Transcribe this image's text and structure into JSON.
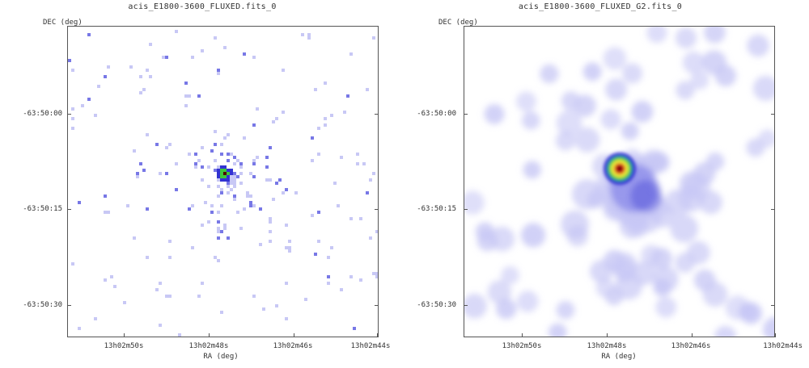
{
  "panels": [
    {
      "title": "acis_E1800-3600_FLUXED.fits_0",
      "y_axis_title": "DEC (deg)",
      "x_axis_title": "RA (deg)",
      "y_ticks": [
        "-63:50:00",
        "-63:50:15",
        "-63:50:30"
      ],
      "x_ticks": [
        "13h02m50s",
        "13h02m48s",
        "13h02m46s",
        "13h02m44s"
      ],
      "style": "pixelated-counts"
    },
    {
      "title": "acis_E1800-3600_FLUXED_G2.fits_0",
      "y_axis_title": "DEC (deg)",
      "x_axis_title": "RA (deg)",
      "y_ticks": [
        "-63:50:00",
        "-63:50:15",
        "-63:50:30"
      ],
      "x_ticks": [
        "13h02m50s",
        "13h02m48s",
        "13h02m46s",
        "13h02m44s"
      ],
      "style": "smoothed"
    }
  ],
  "colors": {
    "faint": "#c8c8f5",
    "mid": "#7878e6",
    "bright": "#3232d2",
    "hot_green": "#3cc83c",
    "hot_yellow": "#f0f03c",
    "hot_red": "#dc1e1e",
    "core": "#500000"
  }
}
